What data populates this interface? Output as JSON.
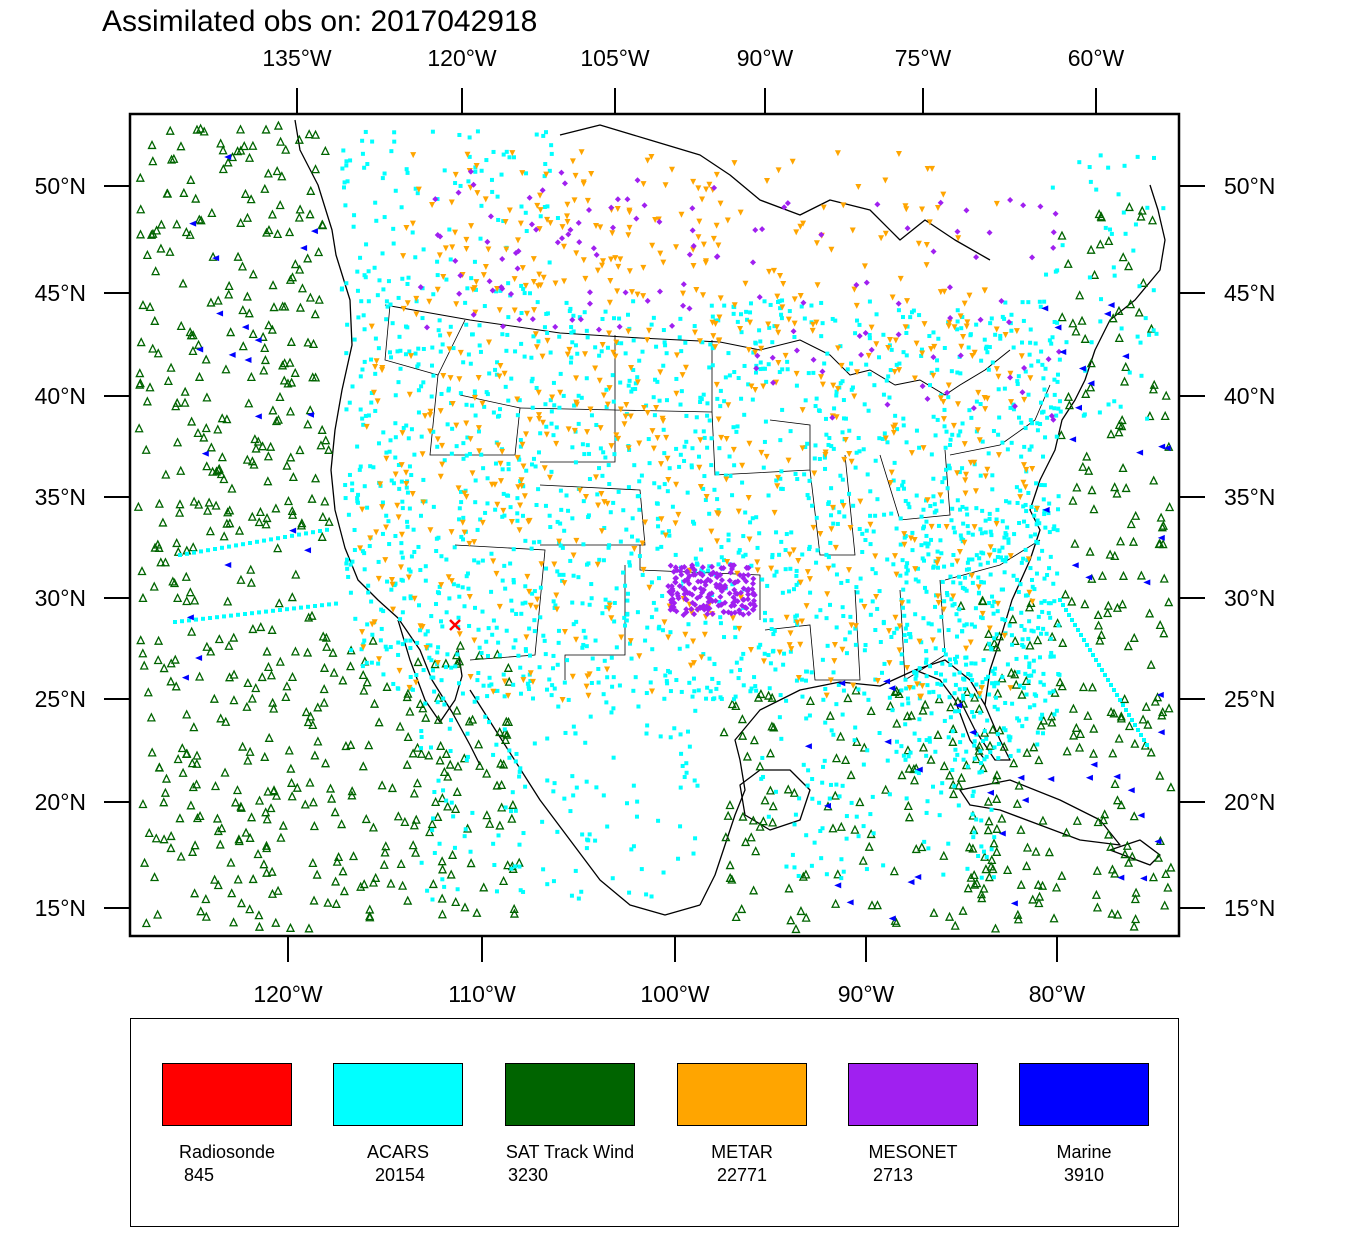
{
  "title": "Assimilated obs on: 2017042918",
  "colors": {
    "radiosonde": "#ff0000",
    "acars": "#00ffff",
    "sat": "#006400",
    "metar": "#ffa500",
    "mesonet": "#a020f0",
    "marine": "#0000ff",
    "land_edge": "#000000",
    "background": "#ffffff"
  },
  "top_lon_labels": [
    "135°W",
    "120°W",
    "105°W",
    "90°W",
    "75°W",
    "60°W"
  ],
  "bottom_lon_labels": [
    "120°W",
    "110°W",
    "100°W",
    "90°W",
    "80°W"
  ],
  "lat_labels": [
    "50°N",
    "45°N",
    "40°N",
    "35°N",
    "30°N",
    "25°N",
    "20°N",
    "15°N"
  ],
  "legend": [
    {
      "name": "Radiosonde",
      "count": "845",
      "color": "#ff0000"
    },
    {
      "name": "ACARS",
      "count": "20154",
      "color": "#00ffff"
    },
    {
      "name": "SAT Track Wind",
      "count": "3230",
      "color": "#006400"
    },
    {
      "name": "METAR",
      "count": "22771",
      "color": "#ffa500"
    },
    {
      "name": "MESONET",
      "count": "2713",
      "color": "#a020f0"
    },
    {
      "name": "Marine",
      "count": "3910",
      "color": "#0000ff"
    }
  ],
  "map_data": {
    "projection": "Lambert conformal",
    "lat_range": [
      14,
      55
    ],
    "lon_range": [
      -140,
      -55
    ],
    "symbols": {
      "Radiosonde": "x",
      "ACARS": "square",
      "SAT Track Wind": "triangle-up",
      "METAR": "triangle-down",
      "MESONET": "diamond",
      "Marine": "triangle-left"
    }
  }
}
